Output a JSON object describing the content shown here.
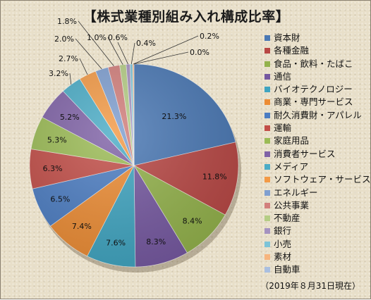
{
  "chart_data": {
    "type": "pie",
    "title": "【株式業種別組み入れ構成比率】",
    "note": "（2019年８月31日現在）",
    "unit": "%",
    "slices": [
      {
        "label": "資本財",
        "value": 21.3,
        "display": "21.3%",
        "color": "#4a78b4"
      },
      {
        "label": "各種金融",
        "value": 11.8,
        "display": "11.8%",
        "color": "#b84744"
      },
      {
        "label": "食品・飲料・たばこ",
        "value": 8.4,
        "display": "8.4%",
        "color": "#93b24b"
      },
      {
        "label": "通信",
        "value": 8.3,
        "display": "8.3%",
        "color": "#7558a0"
      },
      {
        "label": "バイオテクノロジー",
        "value": 7.6,
        "display": "7.6%",
        "color": "#3fa4c0"
      },
      {
        "label": "商業・専門サービス",
        "value": 7.4,
        "display": "7.4%",
        "color": "#ec8c34"
      },
      {
        "label": "耐久消費財・アパレル",
        "value": 6.5,
        "display": "6.5%",
        "color": "#4c7dc2"
      },
      {
        "label": "運輸",
        "value": 6.3,
        "display": "6.3%",
        "color": "#c24e48"
      },
      {
        "label": "家庭用品",
        "value": 5.3,
        "display": "5.3%",
        "color": "#9bbb55"
      },
      {
        "label": "消費者サービス",
        "value": 5.2,
        "display": "5.2%",
        "color": "#7f62a6"
      },
      {
        "label": "メディア",
        "value": 3.2,
        "display": "3.2%",
        "color": "#4bacc6"
      },
      {
        "label": "ソフトウェア・サービス",
        "value": 2.7,
        "display": "2.7%",
        "color": "#f39a46"
      },
      {
        "label": "エネルギー",
        "value": 2.0,
        "display": "2.0%",
        "color": "#7f9fd0"
      },
      {
        "label": "公共事業",
        "value": 1.8,
        "display": "1.8%",
        "color": "#d27f7c"
      },
      {
        "label": "不動産",
        "value": 1.0,
        "display": "1.0%",
        "color": "#b5cd85"
      },
      {
        "label": "銀行",
        "value": 0.6,
        "display": "0.6%",
        "color": "#a592c0"
      },
      {
        "label": "小売",
        "value": 0.4,
        "display": "0.4%",
        "color": "#7dc4d8"
      },
      {
        "label": "素材",
        "value": 0.2,
        "display": "0.2%",
        "color": "#f7b57e"
      },
      {
        "label": "自動車",
        "value": 0.0,
        "display": "0.0%",
        "color": "#a9bfe0"
      }
    ],
    "legend_position": "right"
  }
}
